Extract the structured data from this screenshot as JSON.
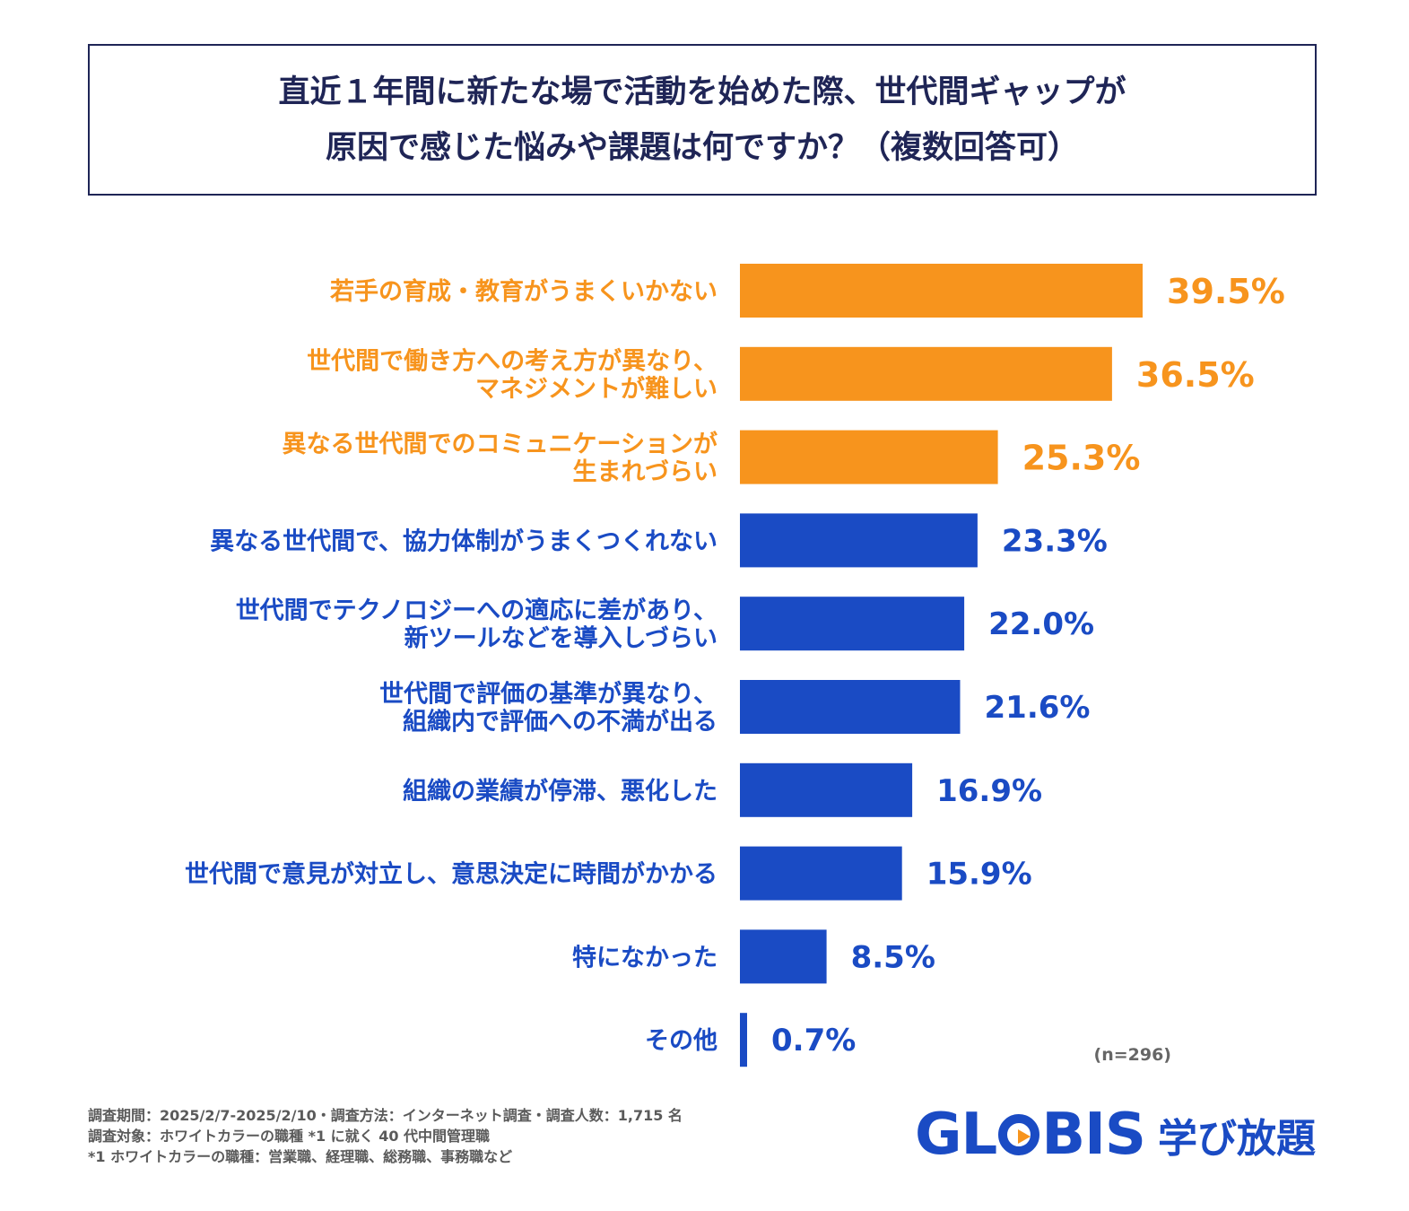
{
  "title": {
    "line1": "直近１年間に新たな場で活動を始めた際、世代間ギャップが",
    "line2": "原因で感じた悩みや課題は何ですか？（複数回答可）"
  },
  "colors": {
    "highlight": "#f7941d",
    "normal": "#1a4bc4",
    "title": "#1f2556"
  },
  "chart_data": {
    "type": "bar",
    "orientation": "horizontal",
    "unit": "%",
    "xlim": [
      0,
      39.5
    ],
    "categories": [
      [
        "若手の育成・教育がうまくいかない"
      ],
      [
        "世代間で働き方への考え方が異なり、",
        "マネジメントが難しい"
      ],
      [
        "異なる世代間でのコミュニケーションが",
        "生まれづらい"
      ],
      [
        "異なる世代間で、協力体制がうまくつくれない"
      ],
      [
        "世代間でテクノロジーへの適応に差があり、",
        "新ツールなどを導入しづらい"
      ],
      [
        "世代間で評価の基準が異なり、",
        "組織内で評価への不満が出る"
      ],
      [
        "組織の業績が停滞、悪化した"
      ],
      [
        "世代間で意見が対立し、意思決定に時間がかかる"
      ],
      [
        "特になかった"
      ],
      [
        "その他"
      ]
    ],
    "values": [
      39.5,
      36.5,
      25.3,
      23.3,
      22.0,
      21.6,
      16.9,
      15.9,
      8.5,
      0.7
    ],
    "value_labels": [
      "39.5%",
      "36.5%",
      "25.3%",
      "23.3%",
      "22.0%",
      "21.6%",
      "16.9%",
      "15.9%",
      "8.5%",
      "0.7%"
    ],
    "highlighted": [
      true,
      true,
      true,
      false,
      false,
      false,
      false,
      false,
      false,
      false
    ]
  },
  "sample_note": "(n=296)",
  "footer": {
    "line1": "調査期間：2025/2/7-2025/2/10・調査方法：インターネット調査・調査人数：1,715 名",
    "line2": "調査対象：ホワイトカラーの職種 *1 に就く 40 代中間管理職",
    "line3": "*1 ホワイトカラーの職種：営業職、経理職、総務職、事務職など"
  },
  "logo": {
    "word_left": "GL",
    "word_right": "BIS",
    "tagline": "学び放題"
  }
}
